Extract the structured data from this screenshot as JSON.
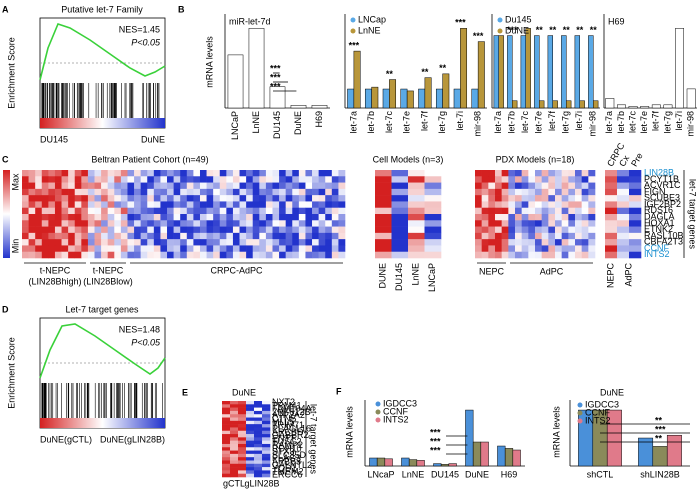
{
  "panel_a": {
    "label": "A",
    "title": "Putative let-7 Family",
    "y_label": "Enrichment Score",
    "nes": "NES=1.45",
    "p": "P<0.05",
    "left": "DU145",
    "right": "DuNE"
  },
  "panel_b": {
    "label": "B",
    "y_label": "mRNA levels",
    "chart1": {
      "title": "miR-let-7d",
      "categories": [
        "LNCaP",
        "LnNE",
        "DU145",
        "DuNE",
        "H69"
      ],
      "color": "#ffffff",
      "values": [
        1.0,
        1.5,
        0.4,
        0.05,
        0.05
      ],
      "stars": [
        "***",
        "***",
        "***"
      ]
    },
    "chart2": {
      "categories": [
        "let-7a",
        "let-7b",
        "let-7c",
        "let-7e",
        "let-7f",
        "let-7g",
        "let-7i",
        "mir-98"
      ],
      "series": [
        {
          "name": "LNCap",
          "color": "#5aa9e6",
          "values": [
            1,
            1,
            1,
            1,
            1,
            1,
            1,
            1
          ]
        },
        {
          "name": "LnNE",
          "color": "#b8963a",
          "values": [
            3.0,
            1.1,
            1.5,
            0.9,
            1.6,
            1.8,
            4.2,
            3.5
          ]
        }
      ],
      "stars": [
        "***",
        null,
        "**",
        null,
        "**",
        "**",
        "***",
        "***"
      ]
    },
    "chart3": {
      "categories": [
        "let-7a",
        "let-7b",
        "let-7c",
        "let-7e",
        "let-7f",
        "let-7g",
        "let-7i",
        "mir-98"
      ],
      "series": [
        {
          "name": "Du145",
          "color": "#5aa9e6",
          "values": [
            1,
            1,
            1,
            1,
            1,
            1,
            1,
            1
          ]
        },
        {
          "name": "DuNE",
          "color": "#b8963a",
          "values": [
            1.0,
            0.1,
            1.1,
            0.1,
            0.1,
            0.1,
            0.1,
            0.1
          ]
        }
      ],
      "stars": [
        null,
        "***",
        null,
        "**",
        "**",
        "**",
        "**",
        "**"
      ]
    },
    "chart4": {
      "title": "H69",
      "color": "#ffffff",
      "categories": [
        "let-7a",
        "let-7b",
        "let-7c",
        "let-7e",
        "let-7f",
        "let-7g",
        "let-7i",
        "mir-98"
      ],
      "values": [
        0.3,
        0.1,
        0.05,
        0.05,
        0.1,
        0.1,
        2.5,
        0.6
      ]
    }
  },
  "panel_c": {
    "label": "C",
    "title": "Beltran Patient Cohort (n=49)",
    "max": "Max",
    "min": "Min",
    "groups": [
      {
        "line1": "t-NEPC",
        "line2": "(LIN28Bhigh)"
      },
      {
        "line1": "t-NEPC",
        "line2": "(LIN28Blow)"
      },
      {
        "line1": "CRPC-AdPC"
      }
    ],
    "cell": {
      "title": "Cell Models (n=3)",
      "columns": [
        "DUNE",
        "DU145",
        "LnNE",
        "LNCaP"
      ]
    },
    "pdx": {
      "title": "PDX Models (n=18)",
      "groups": [
        "NEPC",
        "AdPC"
      ]
    },
    "targets": {
      "columns": [
        "CRPC",
        "Cx",
        "Pre"
      ],
      "groups": [
        "NEPC",
        "AdPC"
      ],
      "side": "let-7 target genes",
      "genes": [
        "LIN28B",
        "PCYT1B",
        "ACVR1C",
        "FIGN",
        "SCUBE3",
        "IGF2BP2",
        "RDS16",
        "DAGLA",
        "HOXA1",
        "ETNK2",
        "RASL10B",
        "CBFA2T3",
        "CCNF",
        "INTS2"
      ],
      "gene_colors": [
        "#1a8fd0",
        "#000000",
        "#000000",
        "#000000",
        "#000000",
        "#000000",
        "#000000",
        "#000000",
        "#000000",
        "#000000",
        "#000000",
        "#000000",
        "#1a8fd0",
        "#1a8fd0"
      ]
    }
  },
  "panel_d": {
    "label": "D",
    "title": "Let-7 target genes",
    "y_label": "Enrichment Score",
    "nes": "NES=1.48",
    "p": "P<0.05",
    "left": "DuNE(gCTL)",
    "right": "DuNE(gLIN28B)"
  },
  "panel_e": {
    "label": "E",
    "title": "DuNE",
    "side": "let-7 target genes",
    "columns": [
      "gCTL",
      "gLIN28B"
    ],
    "genes": [
      "NXT2",
      "TRM41",
      "FAM104A",
      "ZNF512B",
      "ATP2A2",
      "CTNS",
      "MLL5",
      "TRIM71",
      "PLAGL16",
      "ARCBD",
      "GABBR2",
      "ENTT",
      "TUSC2",
      "RAMP2",
      "RDH10",
      "STX3",
      "SLC35D",
      "PLAG3",
      "APBB3",
      "GALNTL2",
      "YOD1",
      "TMEM2",
      "ERCC6"
    ]
  },
  "panel_f": {
    "label": "F",
    "left": {
      "y_label": "mRNA levels",
      "categories": [
        "LNcaP",
        "LnNE",
        "DU145",
        "DuNE",
        "H69"
      ],
      "series": [
        {
          "name": "IGDCC3",
          "color": "#4a90d9",
          "values": [
            1.0,
            1.0,
            0.3,
            7.0,
            2.5
          ]
        },
        {
          "name": "CCNF",
          "color": "#8a8a5a",
          "values": [
            1.0,
            0.8,
            0.2,
            3.0,
            2.2
          ]
        },
        {
          "name": "INTS2",
          "color": "#e07a8a",
          "values": [
            0.9,
            0.7,
            0.3,
            3.0,
            2.0
          ]
        }
      ],
      "stars": [
        "***",
        "***",
        "***"
      ]
    },
    "right": {
      "title": "DuNE",
      "y_label": "mRNA levels",
      "categories": [
        "shCTL",
        "shLIN28B"
      ],
      "series": [
        {
          "name": "IGDCC3",
          "color": "#4a90d9",
          "values": [
            1.0,
            0.5
          ]
        },
        {
          "name": "CCNF",
          "color": "#8a8a5a",
          "values": [
            1.0,
            0.35
          ]
        },
        {
          "name": "INTS2",
          "color": "#e07a8a",
          "values": [
            1.0,
            0.55
          ]
        }
      ],
      "stars": [
        "**",
        "***",
        "**"
      ]
    }
  }
}
